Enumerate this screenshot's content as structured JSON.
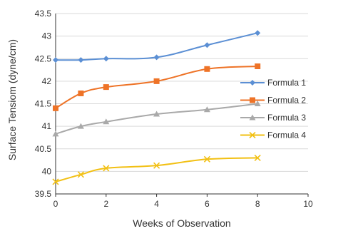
{
  "chart_data": {
    "type": "line",
    "xlabel": "Weeks of Observation",
    "ylabel": "Surface Tensiom (dyne/cm)",
    "xlim": [
      0,
      10
    ],
    "ylim": [
      39.5,
      43.5
    ],
    "x_ticks": [
      "0",
      "2",
      "4",
      "6",
      "8",
      "10"
    ],
    "y_ticks": [
      "39.5",
      "40",
      "40.5",
      "41",
      "41.5",
      "42",
      "42.5",
      "43",
      "43.5"
    ],
    "x_tick_values": [
      0,
      2,
      4,
      6,
      8,
      10
    ],
    "y_tick_values": [
      39.5,
      40,
      40.5,
      41,
      41.5,
      42,
      42.5,
      43,
      43.5
    ],
    "grid": "horizontal",
    "legend_position": "right",
    "series": [
      {
        "name": "Formula 1",
        "color": "#5b8fd4",
        "marker": "diamond",
        "x": [
          0,
          1,
          2,
          4,
          6,
          8
        ],
        "y": [
          42.47,
          42.47,
          42.5,
          42.53,
          42.8,
          43.07
        ]
      },
      {
        "name": "Formula 2",
        "color": "#ee7327",
        "marker": "square",
        "x": [
          0,
          1,
          2,
          4,
          6,
          8
        ],
        "y": [
          41.4,
          41.73,
          41.87,
          42.0,
          42.27,
          42.33
        ]
      },
      {
        "name": "Formula 3",
        "color": "#a9a9a9",
        "marker": "triangle",
        "x": [
          0,
          1,
          2,
          4,
          6,
          8
        ],
        "y": [
          40.83,
          41.0,
          41.1,
          41.27,
          41.37,
          41.5
        ]
      },
      {
        "name": "Formula 4",
        "color": "#f2c014",
        "marker": "x",
        "x": [
          0,
          1,
          2,
          4,
          6,
          8
        ],
        "y": [
          39.77,
          39.93,
          40.07,
          40.13,
          40.27,
          40.3
        ]
      }
    ]
  }
}
